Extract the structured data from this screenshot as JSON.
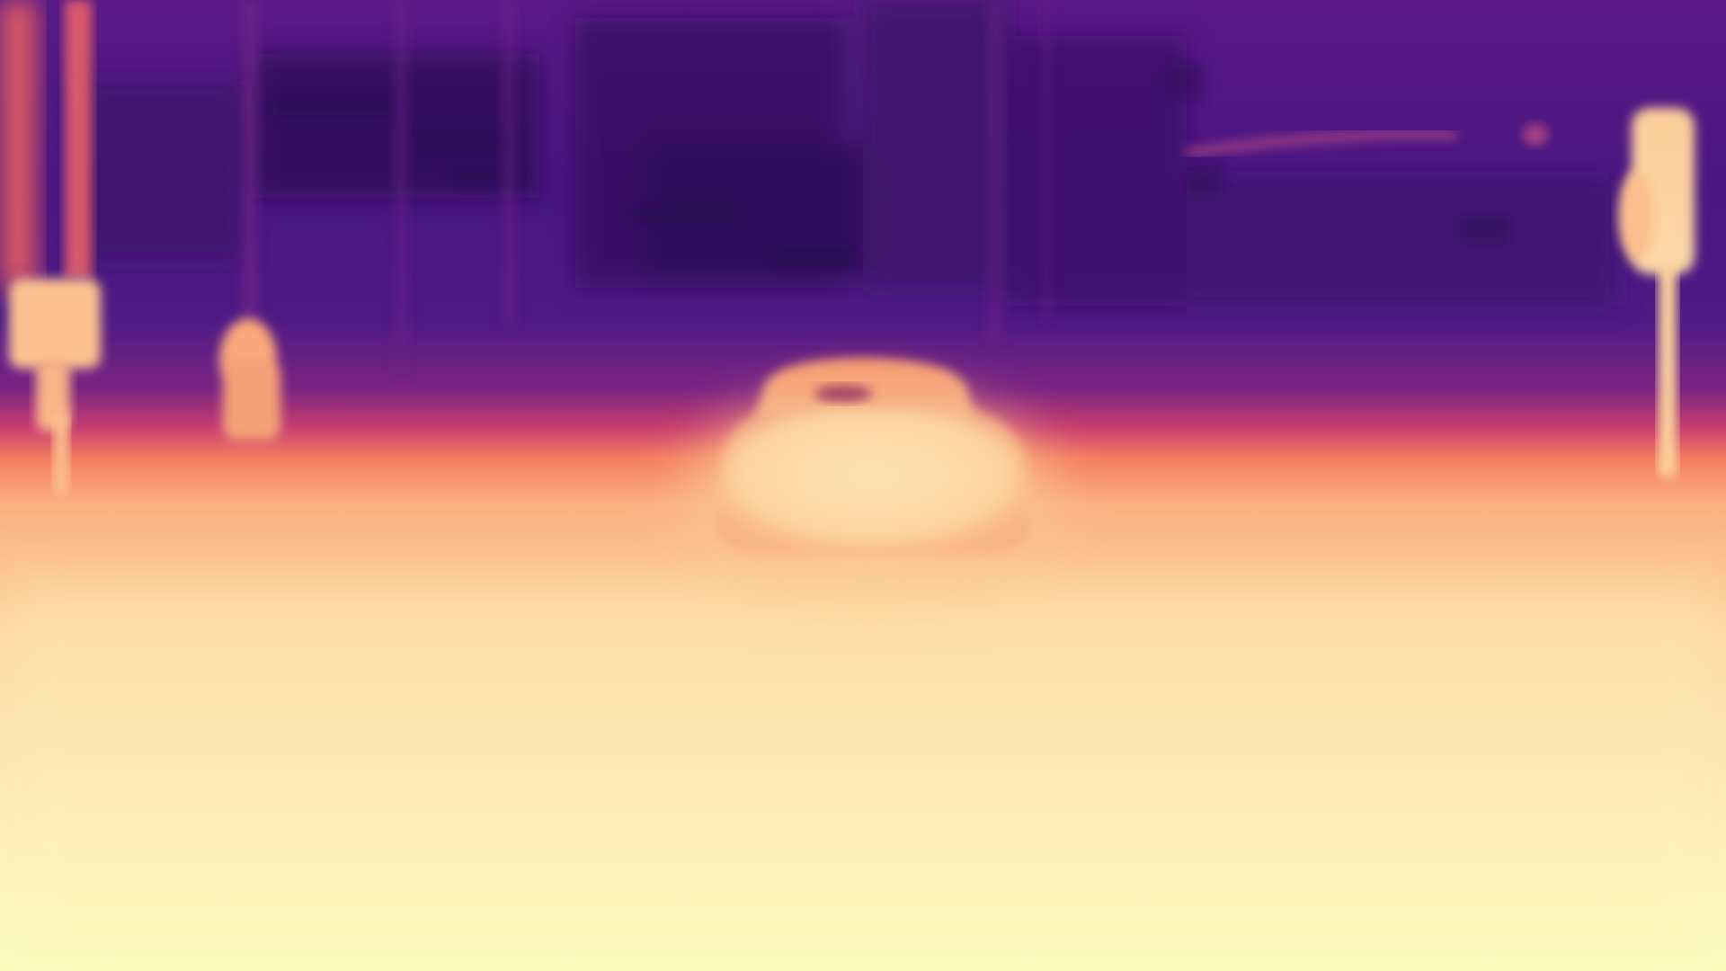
{
  "image": {
    "kind": "depth-map",
    "colormap": "magma",
    "palette": {
      "far": "#3b0f70",
      "far_dark": "#2a0a56",
      "mid_far": "#5a1a86",
      "mid": "#8c2981",
      "mid_near": "#de4968",
      "warm": "#f7705c",
      "near_orange": "#fb9a6a",
      "near": "#fdd09e",
      "nearest": "#fcfdbf"
    },
    "objects": [
      "left-light-pole",
      "left-small-post",
      "center-car",
      "right-light-pole",
      "background-building",
      "ground-plane"
    ]
  }
}
